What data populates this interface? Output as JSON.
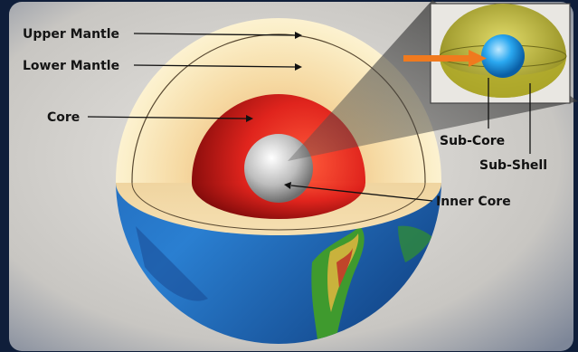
{
  "labels": {
    "upper_mantle": "Upper Mantle",
    "lower_mantle": "Lower Mantle",
    "core": "Core",
    "inner_core": "Inner Core",
    "sub_core": "Sub-Core",
    "sub_shell": "Sub-Shell"
  },
  "colors": {
    "frame": "#0f1e3a",
    "backdrop": "#d9d6d0",
    "mantle": "#f7e4b0",
    "core": "#d9201c",
    "inner_core": "#e6e6e6",
    "sub_shell": "#c9c23a",
    "sub_core": "#2aa8f0",
    "arrow": "#f07a1e"
  }
}
